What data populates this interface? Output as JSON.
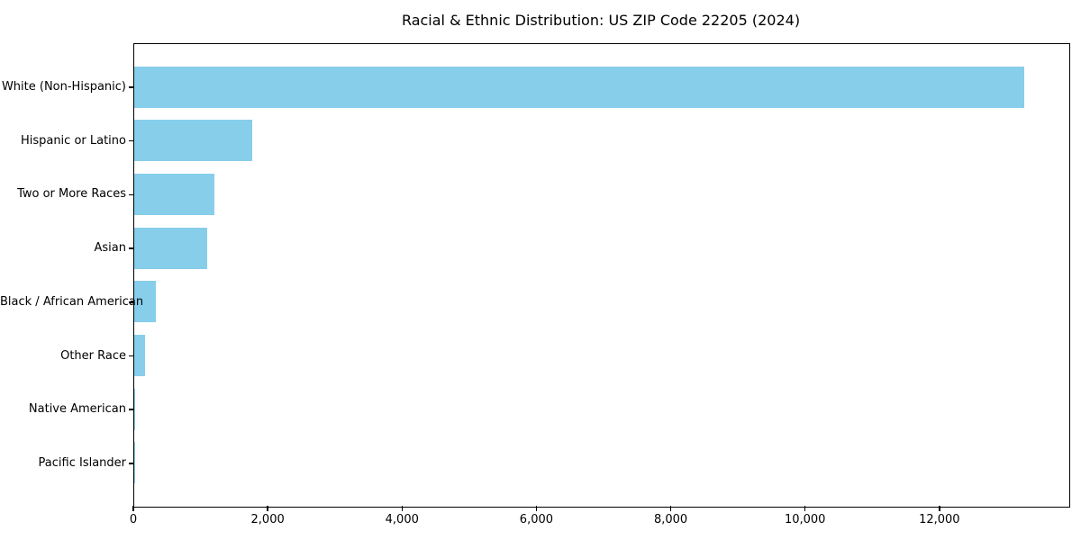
{
  "chart_data": {
    "type": "bar",
    "orientation": "horizontal",
    "title": "Racial & Ethnic Distribution: US ZIP Code 22205 (2024)",
    "categories": [
      "White (Non-Hispanic)",
      "Hispanic or Latino",
      "Two or More Races",
      "Asian",
      "Black / African American",
      "Other Race",
      "Native American",
      "Pacific Islander"
    ],
    "values": [
      13250,
      1760,
      1190,
      1080,
      325,
      165,
      10,
      5
    ],
    "xlabel": "",
    "ylabel": "",
    "xlim": [
      0,
      13920
    ],
    "xticks": [
      0,
      2000,
      4000,
      6000,
      8000,
      10000,
      12000
    ],
    "xtick_labels": [
      "0",
      "2,000",
      "4,000",
      "6,000",
      "8,000",
      "10,000",
      "12,000"
    ],
    "grid": false,
    "legend": null,
    "bar_color": "#87CEEB",
    "frame_color": "#000000",
    "text_color": "#000000",
    "background_color": "#ffffff"
  }
}
